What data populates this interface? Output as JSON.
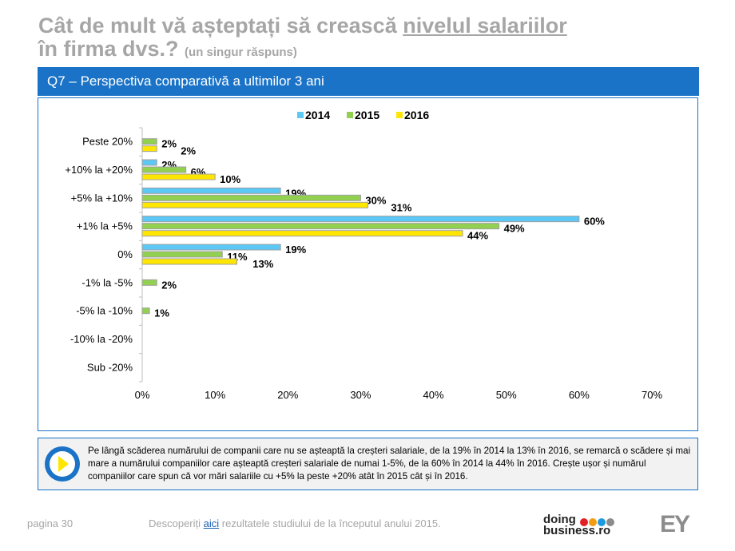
{
  "header": {
    "title_part1": "Cât de mult vă așteptați să crească ",
    "title_underlined": "nivelul salariilor",
    "title_line2": "în firma dvs.? ",
    "title_note": "(un singur răspuns)"
  },
  "band": {
    "label": "Q7 – Perspectiva comparativă a ultimilor 3 ani"
  },
  "chart_data": {
    "type": "bar",
    "orientation": "horizontal",
    "categories": [
      "Peste 20%",
      "+10% la +20%",
      "+5% la +10%",
      "+1% la +5%",
      "0%",
      "-1% la -5%",
      "-5% la -10%",
      "-10% la -20%",
      "Sub -20%"
    ],
    "series": [
      {
        "name": "2014",
        "color": "#5bc8f5",
        "values": [
          null,
          2,
          19,
          60,
          19,
          null,
          null,
          null,
          null
        ]
      },
      {
        "name": "2015",
        "color": "#92d050",
        "values": [
          2,
          6,
          30,
          49,
          11,
          2,
          1,
          null,
          null
        ]
      },
      {
        "name": "2016",
        "color": "#ffe600",
        "values": [
          2,
          10,
          31,
          44,
          13,
          null,
          null,
          null,
          null
        ]
      }
    ],
    "xlim": [
      0,
      70
    ],
    "xticks": [
      "0%",
      "10%",
      "20%",
      "30%",
      "40%",
      "50%",
      "60%",
      "70%"
    ],
    "legend": "top",
    "grid": false
  },
  "note": {
    "text": "Pe lângă scăderea numărului de companii care nu se așteaptă la creșteri salariale, de la 19% în 2014 la 13% în 2016, se remarcă o scădere și mai mare a numărului companiilor care așteaptă creșteri salariale de numai 1-5%, de la 60% în 2014 la 44% în 2016. Crește ușor și numărul companiilor care spun că vor mări salariile cu +5% la peste +20% atât în 2015 cât și în 2016."
  },
  "footer": {
    "page": "pagina 30",
    "disc_before": "Descoperiți ",
    "disc_link": "aici",
    "disc_after": " rezultatele studiului de la începutul anului 2015.",
    "logo1_line1": "doing",
    "logo1_line2": "business.ro",
    "logo2": "EY"
  },
  "colors": {
    "accent": "#1a73c7",
    "dots": [
      "#e31e24",
      "#f39c12",
      "#1e9be0",
      "#8c8c8c"
    ]
  }
}
